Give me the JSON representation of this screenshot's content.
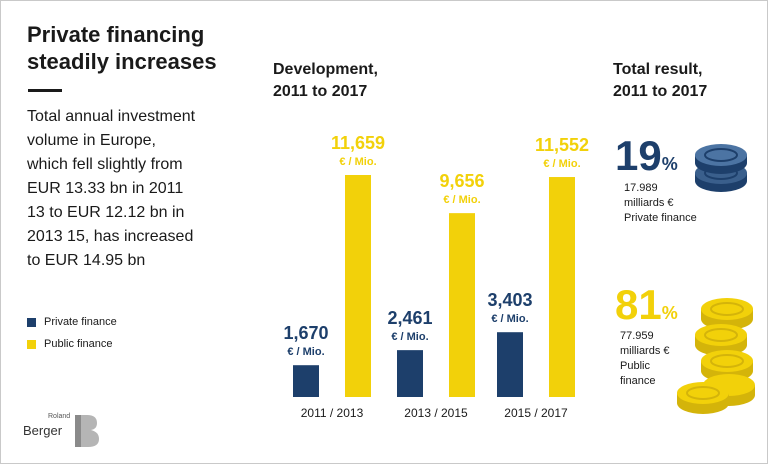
{
  "headline": {
    "line1": "Private financing",
    "line2": "steadily increases"
  },
  "description": {
    "line1": "Total annual investment",
    "line2": "volume in Europe,",
    "line3": "which fell slightly from",
    "line4": "EUR 13.33 bn in 2011",
    "line5": "13 to EUR 12.12 bn in",
    "line6": "2013 15, has increased",
    "line7": "to EUR 14.95 bn"
  },
  "legend": {
    "private": "Private finance",
    "public": "Public finance"
  },
  "development_title": {
    "line1": "Development,",
    "line2": "2011 to 2017"
  },
  "total_title": {
    "line1": "Total result,",
    "line2": "2011 to 2017"
  },
  "chart_data": {
    "type": "bar",
    "categories": [
      "2011 / 2013",
      "2013 / 2015",
      "2015 / 2017"
    ],
    "series": [
      {
        "name": "Private finance",
        "values": [
          1670,
          2461,
          3403
        ],
        "labels": [
          "1,670",
          "2,461",
          "3,403"
        ],
        "color": "#1d3f6b"
      },
      {
        "name": "Public finance",
        "values": [
          11659,
          9656,
          11552
        ],
        "labels": [
          "11,659",
          "9,656",
          "11,552"
        ],
        "color": "#f2d10a"
      }
    ],
    "unit_label": "€ / Mio.",
    "ylim": [
      0,
      11659
    ],
    "grid": false
  },
  "totals": {
    "private": {
      "percent": "19",
      "percent_symbol": "%",
      "line1": "17.989",
      "line2": "milliards €",
      "line3": "Private finance"
    },
    "public": {
      "percent": "81",
      "percent_symbol": "%",
      "line1": "77.959",
      "line2": "milliards €",
      "line3": "Public",
      "line4": "finance"
    }
  },
  "logo": {
    "small": "Roland",
    "main": "Berger"
  },
  "colors": {
    "navy": "#1d3f6b",
    "yellow": "#f2d10a",
    "coin_yellow_dark": "#d4b40a"
  }
}
